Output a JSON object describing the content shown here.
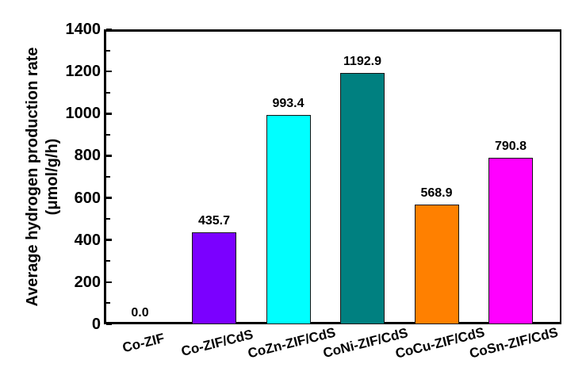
{
  "chart_data": {
    "type": "bar",
    "title": "",
    "ylabel_line1": "Average hydrogen production rate",
    "ylabel_line2": "(μmol/g/h)",
    "xlabel": "",
    "categories": [
      "Co-ZIF",
      "Co-ZIF/CdS",
      "CoZn-ZIF/CdS",
      "CoNi-ZIF/CdS",
      "CoCu-ZIF/CdS",
      "CoSn-ZIF/CdS"
    ],
    "values": [
      0.0,
      435.7,
      993.4,
      1192.9,
      568.9,
      790.8
    ],
    "value_labels": [
      "0.0",
      "435.7",
      "993.4",
      "1192.9",
      "568.9",
      "790.8"
    ],
    "bar_colors": [
      "#ffffff",
      "#7b00ff",
      "#00ffff",
      "#008080",
      "#ff8000",
      "#ff00ff"
    ],
    "bar_edge_color": "#151515",
    "ylim": [
      0,
      1400
    ],
    "ytick_step": 200,
    "ytick_labels": [
      "0",
      "200",
      "400",
      "600",
      "800",
      "1000",
      "1200",
      "1400"
    ],
    "minor_tick_step": 100,
    "axis_color": "#000000",
    "text_color": "#000000",
    "background_color": "#ffffff",
    "grid": false,
    "legend": "none"
  }
}
